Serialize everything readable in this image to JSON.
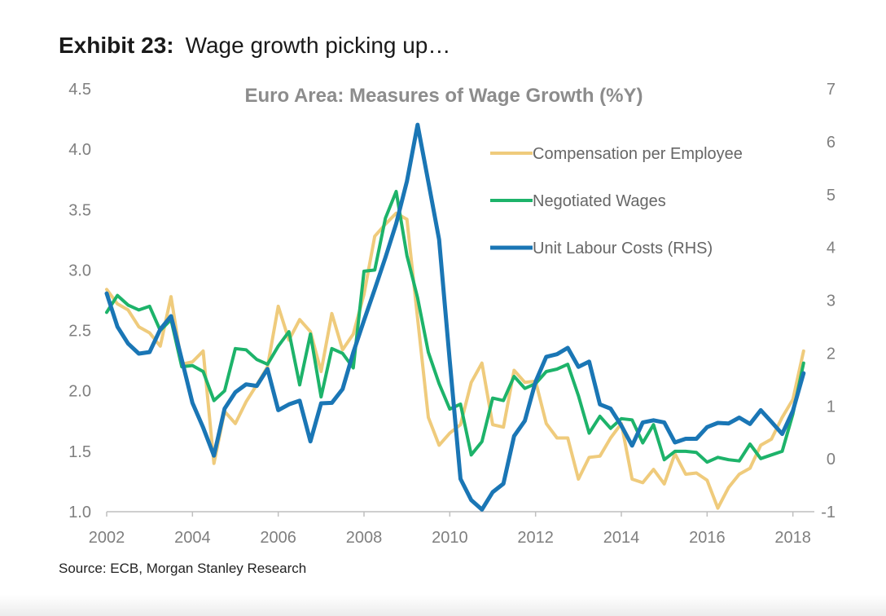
{
  "exhibit": {
    "label": "Exhibit 23:",
    "caption": "Wage growth picking up…"
  },
  "source": "Source: ECB, Morgan Stanley Research",
  "chart_data": {
    "type": "line",
    "title": "Euro Area: Measures of Wage Growth (%Y)",
    "xlabel": "",
    "ylabel": "",
    "y2label": "",
    "xlim": [
      2002.0,
      2018.5
    ],
    "ylim": [
      1.0,
      4.5
    ],
    "y2lim": [
      -1,
      7
    ],
    "x_ticks": [
      2002,
      2004,
      2006,
      2008,
      2010,
      2012,
      2014,
      2016,
      2018
    ],
    "y_ticks": [
      "1.0",
      "1.5",
      "2.0",
      "2.5",
      "3.0",
      "3.5",
      "4.0",
      "4.5"
    ],
    "y2_ticks": [
      "-1",
      "0",
      "1",
      "2",
      "3",
      "4",
      "5",
      "6",
      "7"
    ],
    "grid": false,
    "legend_position": "top-right",
    "series": [
      {
        "name": "Compensation per Employee",
        "axis": "left",
        "color": "#EFCB7C",
        "points": [
          [
            2002.0,
            2.84
          ],
          [
            2002.25,
            2.72
          ],
          [
            2002.5,
            2.67
          ],
          [
            2002.75,
            2.53
          ],
          [
            2003.0,
            2.48
          ],
          [
            2003.25,
            2.37
          ],
          [
            2003.5,
            2.78
          ],
          [
            2003.75,
            2.22
          ],
          [
            2004.0,
            2.24
          ],
          [
            2004.25,
            2.33
          ],
          [
            2004.5,
            1.4
          ],
          [
            2004.75,
            1.83
          ],
          [
            2005.0,
            1.73
          ],
          [
            2005.25,
            1.91
          ],
          [
            2005.5,
            2.05
          ],
          [
            2005.75,
            2.2
          ],
          [
            2006.0,
            2.7
          ],
          [
            2006.25,
            2.42
          ],
          [
            2006.5,
            2.59
          ],
          [
            2006.75,
            2.49
          ],
          [
            2007.0,
            2.16
          ],
          [
            2007.25,
            2.64
          ],
          [
            2007.5,
            2.34
          ],
          [
            2007.75,
            2.47
          ],
          [
            2008.0,
            2.8
          ],
          [
            2008.25,
            3.28
          ],
          [
            2008.5,
            3.38
          ],
          [
            2008.75,
            3.47
          ],
          [
            2009.0,
            3.42
          ],
          [
            2009.25,
            2.6
          ],
          [
            2009.5,
            1.78
          ],
          [
            2009.75,
            1.55
          ],
          [
            2010.0,
            1.65
          ],
          [
            2010.25,
            1.72
          ],
          [
            2010.5,
            2.07
          ],
          [
            2010.75,
            2.23
          ],
          [
            2011.0,
            1.72
          ],
          [
            2011.25,
            1.7
          ],
          [
            2011.5,
            2.17
          ],
          [
            2011.75,
            2.07
          ],
          [
            2012.0,
            2.08
          ],
          [
            2012.25,
            1.73
          ],
          [
            2012.5,
            1.61
          ],
          [
            2012.75,
            1.61
          ],
          [
            2013.0,
            1.27
          ],
          [
            2013.25,
            1.45
          ],
          [
            2013.5,
            1.46
          ],
          [
            2013.75,
            1.61
          ],
          [
            2014.0,
            1.73
          ],
          [
            2014.25,
            1.27
          ],
          [
            2014.5,
            1.24
          ],
          [
            2014.75,
            1.35
          ],
          [
            2015.0,
            1.23
          ],
          [
            2015.25,
            1.48
          ],
          [
            2015.5,
            1.31
          ],
          [
            2015.75,
            1.32
          ],
          [
            2016.0,
            1.26
          ],
          [
            2016.25,
            1.03
          ],
          [
            2016.5,
            1.2
          ],
          [
            2016.75,
            1.31
          ],
          [
            2017.0,
            1.36
          ],
          [
            2017.25,
            1.55
          ],
          [
            2017.5,
            1.6
          ],
          [
            2017.75,
            1.78
          ],
          [
            2018.0,
            1.93
          ],
          [
            2018.25,
            2.33
          ]
        ]
      },
      {
        "name": "Negotiated Wages",
        "axis": "left",
        "color": "#1DB36A",
        "points": [
          [
            2002.0,
            2.65
          ],
          [
            2002.25,
            2.79
          ],
          [
            2002.5,
            2.71
          ],
          [
            2002.75,
            2.67
          ],
          [
            2003.0,
            2.7
          ],
          [
            2003.25,
            2.5
          ],
          [
            2003.5,
            2.59
          ],
          [
            2003.75,
            2.2
          ],
          [
            2004.0,
            2.21
          ],
          [
            2004.25,
            2.16
          ],
          [
            2004.5,
            1.92
          ],
          [
            2004.75,
            2.0
          ],
          [
            2005.0,
            2.35
          ],
          [
            2005.25,
            2.34
          ],
          [
            2005.5,
            2.26
          ],
          [
            2005.75,
            2.22
          ],
          [
            2006.0,
            2.37
          ],
          [
            2006.25,
            2.49
          ],
          [
            2006.5,
            2.05
          ],
          [
            2006.75,
            2.47
          ],
          [
            2007.0,
            1.95
          ],
          [
            2007.25,
            2.35
          ],
          [
            2007.5,
            2.31
          ],
          [
            2007.75,
            2.19
          ],
          [
            2008.0,
            2.99
          ],
          [
            2008.25,
            3.0
          ],
          [
            2008.5,
            3.43
          ],
          [
            2008.75,
            3.65
          ],
          [
            2009.0,
            3.12
          ],
          [
            2009.25,
            2.77
          ],
          [
            2009.5,
            2.32
          ],
          [
            2009.75,
            2.06
          ],
          [
            2010.0,
            1.85
          ],
          [
            2010.25,
            1.89
          ],
          [
            2010.5,
            1.47
          ],
          [
            2010.75,
            1.58
          ],
          [
            2011.0,
            1.94
          ],
          [
            2011.25,
            1.92
          ],
          [
            2011.5,
            2.12
          ],
          [
            2011.75,
            2.02
          ],
          [
            2012.0,
            2.06
          ],
          [
            2012.25,
            2.16
          ],
          [
            2012.5,
            2.18
          ],
          [
            2012.75,
            2.22
          ],
          [
            2013.0,
            1.96
          ],
          [
            2013.25,
            1.65
          ],
          [
            2013.5,
            1.79
          ],
          [
            2013.75,
            1.69
          ],
          [
            2014.0,
            1.77
          ],
          [
            2014.25,
            1.76
          ],
          [
            2014.5,
            1.57
          ],
          [
            2014.75,
            1.72
          ],
          [
            2015.0,
            1.43
          ],
          [
            2015.25,
            1.5
          ],
          [
            2015.5,
            1.5
          ],
          [
            2015.75,
            1.49
          ],
          [
            2016.0,
            1.41
          ],
          [
            2016.25,
            1.45
          ],
          [
            2016.5,
            1.43
          ],
          [
            2016.75,
            1.42
          ],
          [
            2017.0,
            1.56
          ],
          [
            2017.25,
            1.44
          ],
          [
            2017.5,
            1.47
          ],
          [
            2017.75,
            1.5
          ],
          [
            2018.0,
            1.81
          ],
          [
            2018.25,
            2.23
          ]
        ]
      },
      {
        "name": "Unit Labour Costs (RHS)",
        "axis": "right",
        "color": "#1A76B5",
        "points": [
          [
            2002.0,
            3.13
          ],
          [
            2002.25,
            2.5
          ],
          [
            2002.5,
            2.18
          ],
          [
            2002.75,
            1.99
          ],
          [
            2003.0,
            2.02
          ],
          [
            2003.25,
            2.45
          ],
          [
            2003.5,
            2.7
          ],
          [
            2003.75,
            1.88
          ],
          [
            2004.0,
            1.06
          ],
          [
            2004.25,
            0.59
          ],
          [
            2004.5,
            0.06
          ],
          [
            2004.75,
            0.95
          ],
          [
            2005.0,
            1.26
          ],
          [
            2005.25,
            1.41
          ],
          [
            2005.5,
            1.38
          ],
          [
            2005.75,
            1.7
          ],
          [
            2006.0,
            0.92
          ],
          [
            2006.25,
            1.03
          ],
          [
            2006.5,
            1.1
          ],
          [
            2006.75,
            0.33
          ],
          [
            2007.0,
            1.05
          ],
          [
            2007.25,
            1.06
          ],
          [
            2007.5,
            1.32
          ],
          [
            2007.75,
            2.01
          ],
          [
            2008.0,
            2.62
          ],
          [
            2008.25,
            3.21
          ],
          [
            2008.5,
            3.81
          ],
          [
            2008.75,
            4.45
          ],
          [
            2009.0,
            5.25
          ],
          [
            2009.25,
            6.32
          ],
          [
            2009.5,
            5.24
          ],
          [
            2009.75,
            4.15
          ],
          [
            2010.0,
            1.85
          ],
          [
            2010.25,
            -0.38
          ],
          [
            2010.5,
            -0.78
          ],
          [
            2010.75,
            -0.96
          ],
          [
            2011.0,
            -0.63
          ],
          [
            2011.25,
            -0.47
          ],
          [
            2011.5,
            0.43
          ],
          [
            2011.75,
            0.72
          ],
          [
            2012.0,
            1.46
          ],
          [
            2012.25,
            1.93
          ],
          [
            2012.5,
            1.98
          ],
          [
            2012.75,
            2.1
          ],
          [
            2013.0,
            1.74
          ],
          [
            2013.25,
            1.84
          ],
          [
            2013.5,
            1.03
          ],
          [
            2013.75,
            0.95
          ],
          [
            2014.0,
            0.63
          ],
          [
            2014.25,
            0.25
          ],
          [
            2014.5,
            0.69
          ],
          [
            2014.75,
            0.73
          ],
          [
            2015.0,
            0.69
          ],
          [
            2015.25,
            0.31
          ],
          [
            2015.5,
            0.38
          ],
          [
            2015.75,
            0.38
          ],
          [
            2016.0,
            0.6
          ],
          [
            2016.25,
            0.68
          ],
          [
            2016.5,
            0.67
          ],
          [
            2016.75,
            0.78
          ],
          [
            2017.0,
            0.66
          ],
          [
            2017.25,
            0.92
          ],
          [
            2017.5,
            0.7
          ],
          [
            2017.75,
            0.47
          ],
          [
            2018.0,
            0.91
          ],
          [
            2018.25,
            1.62
          ]
        ]
      }
    ]
  }
}
